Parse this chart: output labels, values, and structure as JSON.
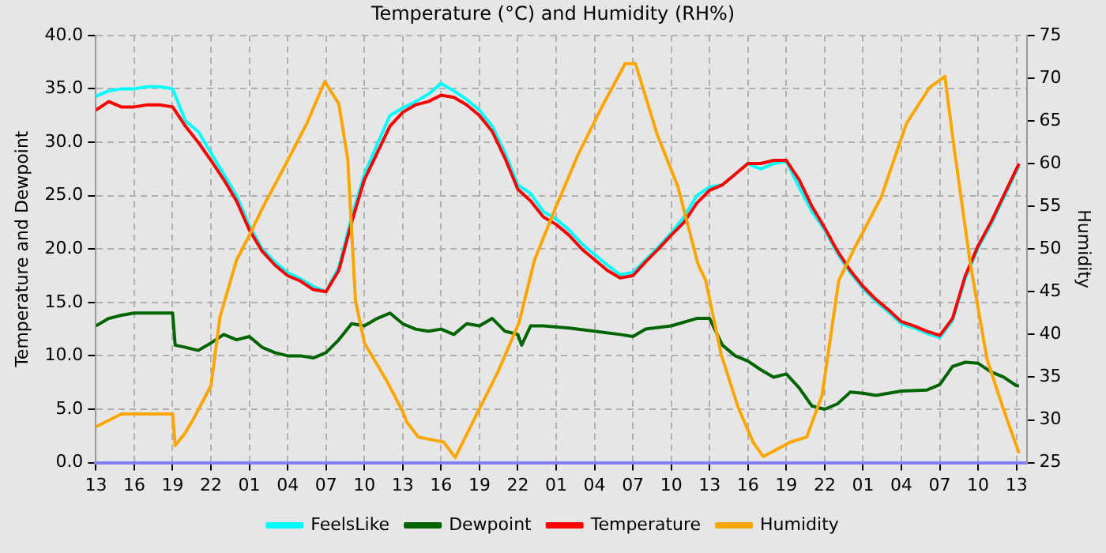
{
  "chart_data": {
    "type": "line",
    "title": "Temperature (°C) and Humidity (RH%)",
    "ylabel": "Temperature and Dewpoint",
    "y2label": "Humidity",
    "xlim": [
      "--01-01T13:00",
      "--01-04T13:48"
    ],
    "xticks": [
      {
        "value": "--01-01T13:00",
        "label": "13"
      },
      {
        "value": "--01-01T16:00",
        "label": "16"
      },
      {
        "value": "--01-01T19:00",
        "label": "19"
      },
      {
        "value": "--01-01T22:00",
        "label": "22"
      },
      {
        "value": "--01-02T01:00",
        "label": "01"
      },
      {
        "value": "--01-02T04:00",
        "label": "04"
      },
      {
        "value": "--01-02T07:00",
        "label": "07"
      },
      {
        "value": "--01-02T10:00",
        "label": "10"
      },
      {
        "value": "--01-02T13:00",
        "label": "13"
      },
      {
        "value": "--01-02T16:00",
        "label": "16"
      },
      {
        "value": "--01-02T19:00",
        "label": "19"
      },
      {
        "value": "--01-02T22:00",
        "label": "22"
      },
      {
        "value": "--01-03T01:00",
        "label": "01"
      },
      {
        "value": "--01-03T04:00",
        "label": "04"
      },
      {
        "value": "--01-03T07:00",
        "label": "07"
      },
      {
        "value": "--01-03T10:00",
        "label": "10"
      },
      {
        "value": "--01-03T13:00",
        "label": "13"
      },
      {
        "value": "--01-03T16:00",
        "label": "16"
      },
      {
        "value": "--01-03T19:00",
        "label": "19"
      },
      {
        "value": "--01-03T22:00",
        "label": "22"
      },
      {
        "value": "--01-04T01:00",
        "label": "01"
      },
      {
        "value": "--01-04T04:00",
        "label": "04"
      },
      {
        "value": "--01-04T07:00",
        "label": "07"
      },
      {
        "value": "--01-04T10:00",
        "label": "10"
      },
      {
        "value": "--01-04T13:00",
        "label": "13"
      }
    ],
    "ylim": [
      0,
      40
    ],
    "yticks": [
      {
        "value": 0,
        "label": "0.0"
      },
      {
        "value": 5,
        "label": "5.0"
      },
      {
        "value": 10,
        "label": "10.0"
      },
      {
        "value": 15,
        "label": "15.0"
      },
      {
        "value": 20,
        "label": "20.0"
      },
      {
        "value": 25,
        "label": "25.0"
      },
      {
        "value": 30,
        "label": "30.0"
      },
      {
        "value": 35,
        "label": "35.0"
      },
      {
        "value": 40,
        "label": "40.0"
      }
    ],
    "y2lim": [
      25,
      75
    ],
    "y2ticks": [
      25,
      30,
      35,
      40,
      45,
      50,
      55,
      60,
      65,
      70,
      75
    ],
    "grid": true,
    "legend": "bottom",
    "marker": "none",
    "line_style": "solid",
    "series": [
      {
        "name": "FeelsLike",
        "color": "#00ffff",
        "x": [
          "--01-01T13:00",
          "--01-01T14:00",
          "--01-01T15:00",
          "--01-01T16:00",
          "--01-01T17:00",
          "--01-01T18:00",
          "--01-01T19:00",
          "--01-01T20:00",
          "--01-01T21:00",
          "--01-01T22:00",
          "--01-01T23:00",
          "--01-02T00:00",
          "--01-02T01:00",
          "--01-02T02:00",
          "--01-02T03:00",
          "--01-02T04:00",
          "--01-02T05:00",
          "--01-02T06:00",
          "--01-02T07:00",
          "--01-02T08:00",
          "--01-02T09:00",
          "--01-02T10:00",
          "--01-02T11:00",
          "--01-02T12:00",
          "--01-02T13:00",
          "--01-02T14:00",
          "--01-02T15:00",
          "--01-02T16:00",
          "--01-02T17:00",
          "--01-02T18:00",
          "--01-02T19:00",
          "--01-02T20:00",
          "--01-02T21:00",
          "--01-02T22:00",
          "--01-02T23:00",
          "--01-03T00:00",
          "--01-03T01:00",
          "--01-03T02:00",
          "--01-03T03:00",
          "--01-03T04:00",
          "--01-03T05:00",
          "--01-03T06:00",
          "--01-03T07:00",
          "--01-03T08:00",
          "--01-03T09:00",
          "--01-03T10:00",
          "--01-03T11:00",
          "--01-03T12:00",
          "--01-03T13:00",
          "--01-03T14:00",
          "--01-03T15:00",
          "--01-03T16:00",
          "--01-03T17:00",
          "--01-03T18:00",
          "--01-03T19:00",
          "--01-03T20:00",
          "--01-03T21:00",
          "--01-03T22:00",
          "--01-03T23:00",
          "--01-04T00:00",
          "--01-04T01:00",
          "--01-04T02:00",
          "--01-04T03:00",
          "--01-04T04:00",
          "--01-04T05:00",
          "--01-04T06:00",
          "--01-04T07:00",
          "--01-04T08:00",
          "--01-04T09:00",
          "--01-04T10:00",
          "--01-04T11:00",
          "--01-04T12:00",
          "--01-04T13:00",
          "--01-04T13:12"
        ],
        "values": [
          34.3,
          34.8,
          35.0,
          35.0,
          35.2,
          35.2,
          35.0,
          32.0,
          31.0,
          29.0,
          27.0,
          25.0,
          22.2,
          20.0,
          18.8,
          17.8,
          17.2,
          16.5,
          16.0,
          18.3,
          23.0,
          27.0,
          29.8,
          32.5,
          33.2,
          33.8,
          34.5,
          35.5,
          34.8,
          34.0,
          33.0,
          31.5,
          29.0,
          26.0,
          25.2,
          23.5,
          22.8,
          21.8,
          20.5,
          19.5,
          18.5,
          17.6,
          17.8,
          19.0,
          20.2,
          21.5,
          23.0,
          25.0,
          25.8,
          26.0,
          27.0,
          28.0,
          27.5,
          28.0,
          28.2,
          25.8,
          23.5,
          21.8,
          19.6,
          17.8,
          16.3,
          15.1,
          14.1,
          13.0,
          12.6,
          12.1,
          11.7,
          13.3,
          17.3,
          20.1,
          22.3,
          24.8,
          27.3,
          27.8
        ]
      },
      {
        "name": "Dewpoint",
        "color": "#006400",
        "x": [
          "--01-01T13:00",
          "--01-01T14:00",
          "--01-01T15:00",
          "--01-01T16:00",
          "--01-01T18:00",
          "--01-01T19:00",
          "--01-01T19:12",
          "--01-01T20:00",
          "--01-01T21:00",
          "--01-01T22:00",
          "--01-01T23:00",
          "--01-02T00:00",
          "--01-02T01:00",
          "--01-02T02:00",
          "--01-02T03:00",
          "--01-02T04:00",
          "--01-02T05:00",
          "--01-02T06:00",
          "--01-02T07:00",
          "--01-02T08:00",
          "--01-02T09:00",
          "--01-02T10:00",
          "--01-02T11:00",
          "--01-02T12:00",
          "--01-02T13:00",
          "--01-02T14:00",
          "--01-02T15:00",
          "--01-02T16:00",
          "--01-02T17:00",
          "--01-02T18:00",
          "--01-02T19:00",
          "--01-02T20:00",
          "--01-02T21:00",
          "--01-02T22:00",
          "--01-02T22:18",
          "--01-02T23:00",
          "--01-03T00:00",
          "--01-03T02:00",
          "--01-03T04:00",
          "--01-03T06:00",
          "--01-03T07:00",
          "--01-03T08:00",
          "--01-03T10:00",
          "--01-03T12:00",
          "--01-03T13:00",
          "--01-03T14:00",
          "--01-03T15:00",
          "--01-03T16:00",
          "--01-03T17:00",
          "--01-03T18:00",
          "--01-03T19:00",
          "--01-03T20:00",
          "--01-03T21:00",
          "--01-03T22:00",
          "--01-03T23:00",
          "--01-04T00:00",
          "--01-04T01:00",
          "--01-04T02:00",
          "--01-04T04:00",
          "--01-04T06:00",
          "--01-04T07:00",
          "--01-04T08:00",
          "--01-04T09:00",
          "--01-04T10:00",
          "--01-04T11:00",
          "--01-04T12:00",
          "--01-04T13:00",
          "--01-04T13:12"
        ],
        "values": [
          12.8,
          13.5,
          13.8,
          14.0,
          14.0,
          14.0,
          11.0,
          10.8,
          10.5,
          11.2,
          12.0,
          11.5,
          11.8,
          10.8,
          10.3,
          10.0,
          10.0,
          9.8,
          10.3,
          11.5,
          13.0,
          12.8,
          13.5,
          14.0,
          13.0,
          12.5,
          12.3,
          12.5,
          12.0,
          13.0,
          12.8,
          13.5,
          12.3,
          12.0,
          11.0,
          12.8,
          12.8,
          12.6,
          12.3,
          12.0,
          11.8,
          12.5,
          12.8,
          13.5,
          13.5,
          11.0,
          10.0,
          9.5,
          8.7,
          8.0,
          8.3,
          7.0,
          5.3,
          5.0,
          5.5,
          6.6,
          6.5,
          6.3,
          6.7,
          6.8,
          7.3,
          9.0,
          9.4,
          9.3,
          8.5,
          8.0,
          7.2,
          7.2
        ]
      },
      {
        "name": "Temperature",
        "color": "#ff0000",
        "x": [
          "--01-01T13:00",
          "--01-01T14:00",
          "--01-01T15:00",
          "--01-01T16:00",
          "--01-01T17:00",
          "--01-01T18:00",
          "--01-01T19:00",
          "--01-01T20:00",
          "--01-01T21:00",
          "--01-01T22:00",
          "--01-01T23:00",
          "--01-02T00:00",
          "--01-02T01:00",
          "--01-02T02:00",
          "--01-02T03:00",
          "--01-02T04:00",
          "--01-02T05:00",
          "--01-02T06:00",
          "--01-02T07:00",
          "--01-02T08:00",
          "--01-02T09:00",
          "--01-02T10:00",
          "--01-02T11:00",
          "--01-02T12:00",
          "--01-02T13:00",
          "--01-02T14:00",
          "--01-02T15:00",
          "--01-02T16:00",
          "--01-02T17:00",
          "--01-02T18:00",
          "--01-02T19:00",
          "--01-02T20:00",
          "--01-02T21:00",
          "--01-02T22:00",
          "--01-02T23:00",
          "--01-03T00:00",
          "--01-03T01:00",
          "--01-03T02:00",
          "--01-03T03:00",
          "--01-03T04:00",
          "--01-03T05:00",
          "--01-03T06:00",
          "--01-03T07:00",
          "--01-03T08:00",
          "--01-03T09:00",
          "--01-03T10:00",
          "--01-03T11:00",
          "--01-03T12:00",
          "--01-03T13:00",
          "--01-03T14:00",
          "--01-03T15:00",
          "--01-03T16:00",
          "--01-03T17:00",
          "--01-03T18:00",
          "--01-03T19:00",
          "--01-03T20:00",
          "--01-03T21:00",
          "--01-03T22:00",
          "--01-03T23:00",
          "--01-04T00:00",
          "--01-04T01:00",
          "--01-04T02:00",
          "--01-04T03:00",
          "--01-04T04:00",
          "--01-04T05:00",
          "--01-04T06:00",
          "--01-04T07:00",
          "--01-04T08:00",
          "--01-04T09:00",
          "--01-04T10:00",
          "--01-04T11:00",
          "--01-04T12:00",
          "--01-04T13:00",
          "--01-04T13:12"
        ],
        "values": [
          33.0,
          33.8,
          33.3,
          33.3,
          33.5,
          33.5,
          33.3,
          31.5,
          30.0,
          28.3,
          26.5,
          24.5,
          21.8,
          19.8,
          18.5,
          17.5,
          17.0,
          16.2,
          16.0,
          18.0,
          22.5,
          26.5,
          29.0,
          31.5,
          32.8,
          33.5,
          33.8,
          34.4,
          34.2,
          33.5,
          32.5,
          31.0,
          28.5,
          25.6,
          24.5,
          23.0,
          22.3,
          21.3,
          20.0,
          19.0,
          18.0,
          17.3,
          17.5,
          18.8,
          20.0,
          21.3,
          22.5,
          24.3,
          25.5,
          26.0,
          27.0,
          28.0,
          28.0,
          28.3,
          28.3,
          26.5,
          24.0,
          22.0,
          19.8,
          18.0,
          16.5,
          15.3,
          14.3,
          13.2,
          12.8,
          12.3,
          11.9,
          13.5,
          17.5,
          20.3,
          22.5,
          25.0,
          27.5,
          28.0
        ]
      },
      {
        "name": "Humidity",
        "color": "#ffa500",
        "axis": "y2",
        "x": [
          "--01-01T13:00",
          "--01-01T15:00",
          "--01-01T17:00",
          "--01-01T19:00",
          "--01-01T19:12",
          "--01-01T20:00",
          "--01-01T20:42",
          "--01-01T22:00",
          "--01-01T22:42",
          "--01-02T00:00",
          "--01-02T00:54",
          "--01-02T02:06",
          "--01-02T03:42",
          "--01-02T05:30",
          "--01-02T06:54",
          "--01-02T08:00",
          "--01-02T08:42",
          "--01-02T09:18",
          "--01-02T10:00",
          "--01-02T11:42",
          "--01-02T13:00",
          "--01-02T13:18",
          "--01-02T14:12",
          "--01-02T16:12",
          "--01-02T17:06",
          "--01-02T18:18",
          "--01-02T20:30",
          "--01-02T22:06",
          "--01-02T23:18",
          "--01-03T01:00",
          "--01-03T02:42",
          "--01-03T04:42",
          "--01-03T06:24",
          "--01-03T07:12",
          "--01-03T08:54",
          "--01-03T10:30",
          "--01-03T12:06",
          "--01-03T12:42",
          "--01-03T13:54",
          "--01-03T15:12",
          "--01-03T16:24",
          "--01-03T17:12",
          "--01-03T19:18",
          "--01-03T20:36",
          "--01-03T21:48",
          "--01-03T23:06",
          "--01-04T00:18",
          "--01-04T02:24",
          "--01-04T04:24",
          "--01-04T06:12",
          "--01-04T07:24",
          "--01-04T08:12",
          "--01-04T09:24",
          "--01-04T10:42",
          "--01-04T11:54",
          "--01-04T13:12"
        ],
        "values": [
          29.2,
          30.7,
          30.7,
          30.7,
          27.0,
          28.5,
          30.3,
          34.0,
          42.0,
          48.7,
          51.3,
          55.0,
          59.5,
          64.7,
          69.6,
          67.0,
          60.5,
          44.0,
          39.0,
          34.7,
          31.0,
          29.8,
          28.0,
          27.4,
          25.6,
          29.2,
          35.8,
          41.4,
          48.7,
          55.0,
          61.0,
          67.0,
          71.7,
          71.7,
          63.4,
          57.4,
          48.2,
          46.3,
          37.7,
          31.6,
          27.4,
          25.7,
          27.4,
          28.0,
          32.9,
          46.3,
          50.0,
          56.0,
          64.7,
          68.9,
          70.2,
          61.0,
          48.2,
          37.1,
          31.6,
          26.1
        ]
      }
    ]
  }
}
